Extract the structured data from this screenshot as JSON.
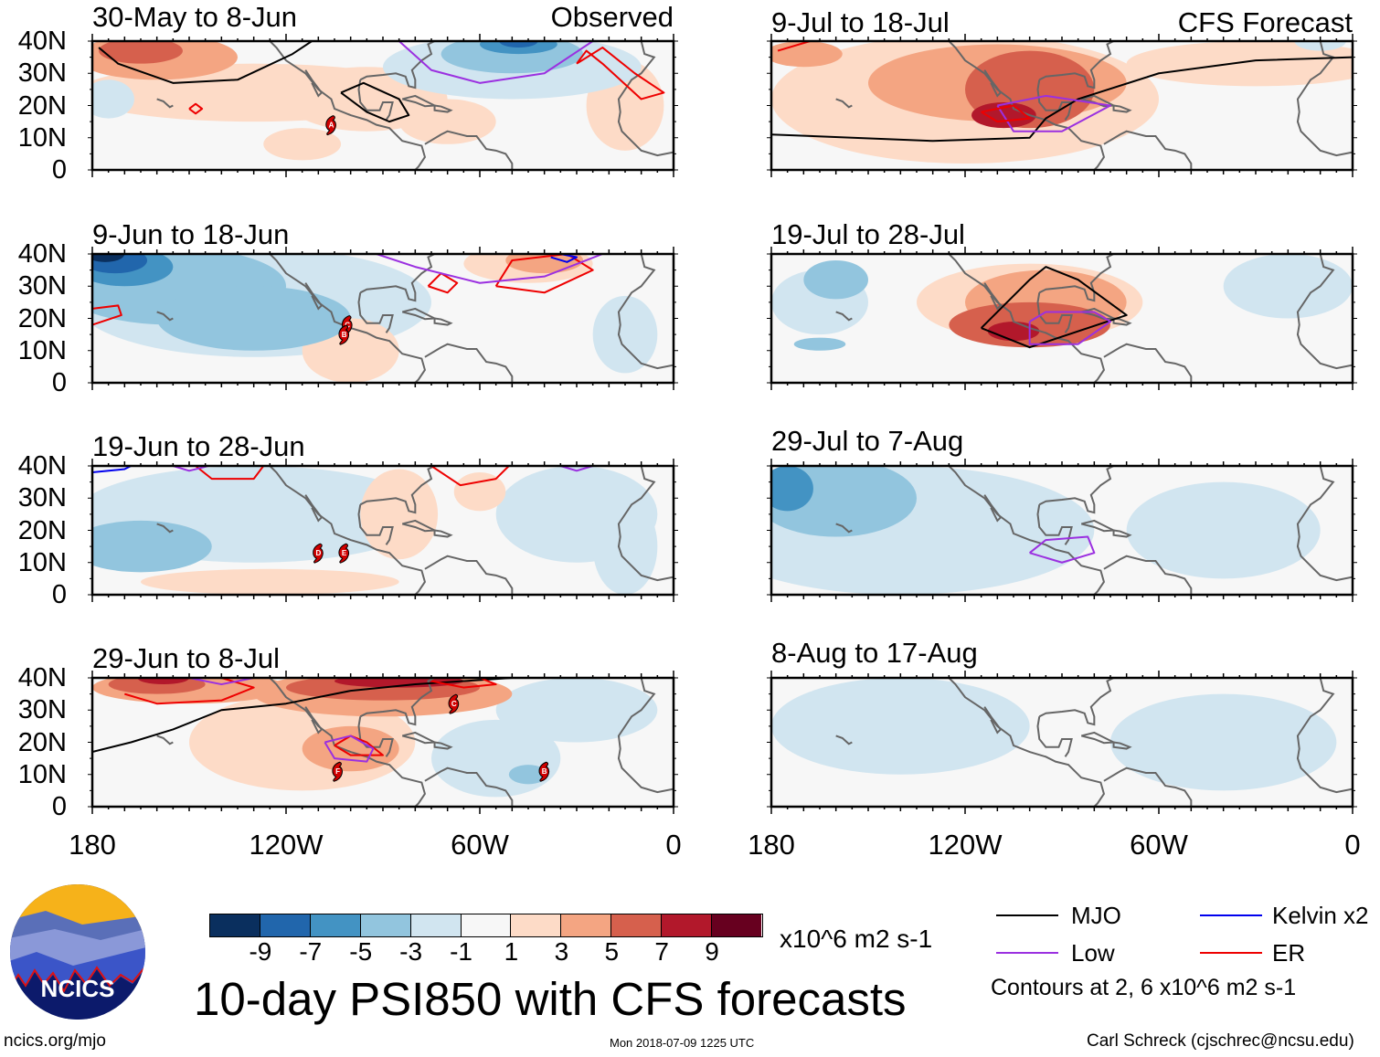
{
  "colors": {
    "-10": "#0a2f5e",
    "-8": "#2166ac",
    "-6": "#4393c3",
    "-4": "#92c5de",
    "-2": "#d1e5f0",
    "0": "#f7f7f7",
    "2": "#fddbc7",
    "4": "#f4a582",
    "6": "#d6604d",
    "8": "#b2182b",
    "10": "#67001f",
    "mjo": "#000000",
    "low": "#9b30e0",
    "kelvin": "#0000ee",
    "er": "#ee0000",
    "land": "#666666"
  },
  "lat_labels": [
    "40N",
    "30N",
    "20N",
    "10N",
    "0"
  ],
  "lon_labels": [
    "180",
    "120W",
    "60W",
    "0"
  ],
  "panels": [
    {
      "title": "30-May to 8-Jun",
      "tag": "Observed",
      "blobs": [
        [
          130,
          24,
          55,
          9,
          2
        ],
        [
          95,
          22,
          25,
          10,
          2
        ],
        [
          70,
          15,
          15,
          7,
          2
        ],
        [
          115,
          8,
          12,
          5,
          2
        ],
        [
          15,
          20,
          12,
          14,
          2
        ],
        [
          160,
          35,
          25,
          7,
          4
        ],
        [
          165,
          37,
          13,
          4,
          6
        ],
        [
          50,
          32,
          40,
          10,
          -2
        ],
        [
          50,
          36,
          22,
          6,
          -4
        ],
        [
          48,
          39,
          12,
          3,
          -6
        ],
        [
          48,
          40,
          6,
          2,
          -8
        ],
        [
          175,
          22,
          8,
          6,
          -2
        ]
      ],
      "contours": [
        [
          "mjo",
          [
            [
              178,
              38
            ],
            [
              172,
              33
            ],
            [
              155,
              27
            ],
            [
              135,
              28
            ],
            [
              118,
              36
            ],
            [
              112,
              40
            ]
          ]
        ],
        [
          "mjo",
          [
            [
              103,
              24
            ],
            [
              95,
              18
            ],
            [
              88,
              15
            ],
            [
              82,
              17
            ],
            [
              85,
              22
            ],
            [
              96,
              27
            ],
            [
              103,
              24
            ]
          ]
        ],
        [
          "er",
          [
            [
              150,
              19
            ],
            [
              148,
              17.5
            ],
            [
              146,
              19
            ],
            [
              148,
              20.5
            ],
            [
              150,
              19
            ]
          ]
        ],
        [
          "er",
          [
            [
              30,
              33
            ],
            [
              27,
              37
            ],
            [
              22,
              33
            ],
            [
              10,
              22
            ],
            [
              3,
              24
            ],
            [
              12,
              30
            ],
            [
              22,
              38
            ],
            [
              30,
              33
            ]
          ]
        ],
        [
          "low",
          [
            [
              85,
              40
            ],
            [
              75,
              31
            ],
            [
              60,
              27
            ],
            [
              40,
              30
            ],
            [
              25,
              40
            ]
          ]
        ]
      ],
      "storms": [
        [
          106,
          14,
          "A"
        ]
      ]
    },
    {
      "title": "9-Jun to 18-Jun",
      "blobs": [
        [
          130,
          25,
          55,
          17,
          -2
        ],
        [
          155,
          30,
          35,
          12,
          -4
        ],
        [
          130,
          20,
          30,
          10,
          -4
        ],
        [
          170,
          36,
          15,
          6,
          -6
        ],
        [
          173,
          38,
          10,
          4,
          -8
        ],
        [
          176,
          40,
          6,
          2.5,
          -10
        ],
        [
          100,
          10,
          15,
          10,
          2
        ],
        [
          45,
          37,
          20,
          6,
          2
        ],
        [
          40,
          38,
          12,
          4,
          4
        ],
        [
          15,
          15,
          10,
          12,
          -2
        ]
      ],
      "contours": [
        [
          "er",
          [
            [
              180,
              23
            ],
            [
              172,
              24
            ],
            [
              171,
              21
            ],
            [
              180,
              18
            ]
          ]
        ],
        [
          "er",
          [
            [
              76,
              30
            ],
            [
              70,
              28
            ],
            [
              67,
              31
            ],
            [
              72,
              34
            ],
            [
              76,
              30
            ]
          ]
        ],
        [
          "er",
          [
            [
              55,
              30
            ],
            [
              40,
              28
            ],
            [
              25,
              35
            ],
            [
              33,
              40
            ],
            [
              50,
              38
            ],
            [
              55,
              30
            ]
          ]
        ],
        [
          "kelvin",
          [
            [
              38,
              39
            ],
            [
              33,
              37.5
            ],
            [
              30,
              39
            ],
            [
              35,
              40
            ]
          ]
        ],
        [
          "low",
          [
            [
              92,
              40
            ],
            [
              80,
              36
            ],
            [
              60,
              31
            ],
            [
              40,
              33
            ],
            [
              22,
              40
            ]
          ]
        ]
      ],
      "storms": [
        [
          101,
          18,
          "C"
        ],
        [
          102,
          15,
          "B"
        ]
      ]
    },
    {
      "title": "19-Jun to 28-Jun",
      "blobs": [
        [
          130,
          25,
          55,
          15,
          -2
        ],
        [
          30,
          25,
          25,
          15,
          -2
        ],
        [
          15,
          15,
          10,
          15,
          -2
        ],
        [
          165,
          15,
          22,
          8,
          -4
        ],
        [
          125,
          4,
          40,
          4,
          2
        ],
        [
          85,
          25,
          12,
          14,
          2
        ],
        [
          60,
          32,
          8,
          6,
          2
        ]
      ],
      "contours": [
        [
          "kelvin",
          [
            [
              180,
              38
            ],
            [
              170,
              39
            ],
            [
              168,
              40
            ]
          ]
        ],
        [
          "er",
          [
            [
              148,
              40
            ],
            [
              143,
              36
            ],
            [
              130,
              36
            ],
            [
              127,
              40
            ]
          ]
        ],
        [
          "er",
          [
            [
              75,
              40
            ],
            [
              66,
              34
            ],
            [
              55,
              36
            ],
            [
              51,
              40
            ]
          ]
        ],
        [
          "low",
          [
            [
              35,
              40
            ],
            [
              30,
              38.5
            ],
            [
              25,
              40
            ]
          ]
        ],
        [
          "low",
          [
            [
              155,
              40
            ],
            [
              150,
              38.5
            ],
            [
              144,
              40
            ]
          ]
        ]
      ],
      "storms": [
        [
          110,
          13,
          "D"
        ],
        [
          102,
          13,
          "E"
        ]
      ]
    },
    {
      "title": "29-Jun to 8-Jul",
      "blobs": [
        [
          115,
          20,
          35,
          15,
          2
        ],
        [
          150,
          37,
          30,
          5,
          4
        ],
        [
          90,
          35,
          40,
          7,
          4
        ],
        [
          100,
          18,
          15,
          7,
          4
        ],
        [
          160,
          38,
          15,
          3,
          6
        ],
        [
          90,
          37,
          30,
          4,
          6
        ],
        [
          85,
          39,
          20,
          2,
          8
        ],
        [
          158,
          40,
          8,
          2,
          8
        ],
        [
          55,
          15,
          20,
          12,
          -2
        ],
        [
          30,
          30,
          25,
          10,
          -2
        ],
        [
          45,
          10,
          6,
          3,
          -4
        ]
      ],
      "contours": [
        [
          "mjo",
          [
            [
              180,
              17
            ],
            [
              168,
              20
            ],
            [
              155,
              24
            ],
            [
              140,
              30
            ],
            [
              120,
              32
            ],
            [
              100,
              36
            ],
            [
              80,
              38
            ],
            [
              50,
              40
            ]
          ]
        ],
        [
          "er",
          [
            [
              170,
              35
            ],
            [
              160,
              32
            ],
            [
              140,
              33
            ],
            [
              130,
              37
            ],
            [
              140,
              40
            ]
          ]
        ],
        [
          "er",
          [
            [
              75,
              39
            ],
            [
              65,
              37
            ],
            [
              55,
              38
            ],
            [
              60,
              40
            ]
          ]
        ],
        [
          "er",
          [
            [
              105,
              19
            ],
            [
              100,
              22
            ],
            [
              95,
              20
            ],
            [
              90,
              16
            ],
            [
              100,
              16
            ],
            [
              105,
              19
            ]
          ]
        ],
        [
          "low",
          [
            [
              108,
              20
            ],
            [
              100,
              22
            ],
            [
              93,
              18
            ],
            [
              95,
              14
            ],
            [
              105,
              15
            ],
            [
              108,
              20
            ]
          ]
        ],
        [
          "low",
          [
            [
              150,
              40
            ],
            [
              140,
              38
            ],
            [
              130,
              40
            ]
          ]
        ]
      ],
      "storms": [
        [
          68,
          32,
          "C"
        ],
        [
          104,
          11,
          "F"
        ],
        [
          40,
          11,
          "B"
        ]
      ]
    },
    {
      "title": "9-Jul to 18-Jul",
      "tag": "CFS Forecast",
      "blobs": [
        [
          120,
          22,
          60,
          20,
          2
        ],
        [
          30,
          33,
          40,
          7,
          2
        ],
        [
          110,
          27,
          40,
          12,
          4
        ],
        [
          170,
          36,
          12,
          4,
          4
        ],
        [
          100,
          25,
          20,
          12,
          6
        ],
        [
          108,
          17,
          10,
          4,
          8
        ],
        [
          10,
          40,
          8,
          3,
          -2
        ]
      ],
      "contours": [
        [
          "mjo",
          [
            [
              180,
              11
            ],
            [
              130,
              9
            ],
            [
              100,
              10
            ],
            [
              95,
              16
            ],
            [
              85,
              22
            ],
            [
              60,
              30
            ],
            [
              30,
              34
            ],
            [
              0,
              35
            ]
          ]
        ],
        [
          "low",
          [
            [
              110,
              20
            ],
            [
              95,
              23
            ],
            [
              75,
              20
            ],
            [
              90,
              12
            ],
            [
              105,
              12
            ],
            [
              110,
              20
            ]
          ]
        ],
        [
          "er",
          [
            [
              115,
              18
            ],
            [
              105,
              20
            ],
            [
              100,
              16
            ],
            [
              110,
              15
            ],
            [
              115,
              18
            ]
          ]
        ],
        [
          "er",
          [
            [
              178,
              37
            ],
            [
              168,
              40
            ]
          ]
        ]
      ],
      "storms": []
    },
    {
      "title": "19-Jul to 28-Jul",
      "blobs": [
        [
          100,
          25,
          35,
          12,
          2
        ],
        [
          95,
          25,
          25,
          10,
          4
        ],
        [
          100,
          18,
          25,
          7,
          6
        ],
        [
          105,
          16,
          8,
          3,
          8
        ],
        [
          165,
          25,
          15,
          10,
          -2
        ],
        [
          160,
          32,
          10,
          6,
          -4
        ],
        [
          165,
          12,
          8,
          2,
          -4
        ],
        [
          20,
          30,
          20,
          10,
          -2
        ]
      ],
      "contours": [
        [
          "mjo",
          [
            [
              115,
              17
            ],
            [
              100,
              32
            ],
            [
              95,
              36
            ],
            [
              85,
              32
            ],
            [
              70,
              21
            ],
            [
              100,
              11
            ],
            [
              115,
              17
            ]
          ]
        ],
        [
          "low",
          [
            [
              100,
              19
            ],
            [
              95,
              22
            ],
            [
              80,
              22
            ],
            [
              75,
              19
            ],
            [
              85,
              12
            ],
            [
              100,
              12
            ],
            [
              100,
              19
            ]
          ]
        ]
      ],
      "storms": []
    },
    {
      "title": "29-Jul to 7-Aug",
      "blobs": [
        [
          140,
          20,
          60,
          20,
          -2
        ],
        [
          40,
          20,
          30,
          15,
          -2
        ],
        [
          160,
          30,
          25,
          12,
          -4
        ],
        [
          175,
          33,
          8,
          7,
          -6
        ]
      ],
      "contours": [
        [
          "low",
          [
            [
              100,
              13
            ],
            [
              95,
              17
            ],
            [
              82,
              18
            ],
            [
              80,
              13
            ],
            [
              90,
              10
            ],
            [
              100,
              13
            ]
          ]
        ]
      ],
      "storms": []
    },
    {
      "title": "8-Aug to 17-Aug",
      "blobs": [
        [
          140,
          25,
          40,
          15,
          -2
        ],
        [
          40,
          20,
          35,
          15,
          -2
        ]
      ],
      "contours": [],
      "storms": []
    }
  ],
  "colorbar": {
    "labels": [
      "-9",
      "-7",
      "-5",
      "-3",
      "-1",
      "1",
      "3",
      "5",
      "7",
      "9"
    ],
    "units": "x10^6 m2 s-1"
  },
  "legend": {
    "mjo": "MJO",
    "kelvin": "Kelvin x2",
    "low": "Low",
    "er": "ER",
    "contours_note": "Contours at 2, 6 x10^6 m2 s-1"
  },
  "main_title": "10-day PSI850 with CFS forecasts",
  "logo_text": "NCICS",
  "footer": {
    "url": "ncics.org/mjo",
    "timestamp": "Mon 2018-07-09 1225 UTC",
    "credit": "Carl Schreck (cjschrec@ncsu.edu)"
  }
}
